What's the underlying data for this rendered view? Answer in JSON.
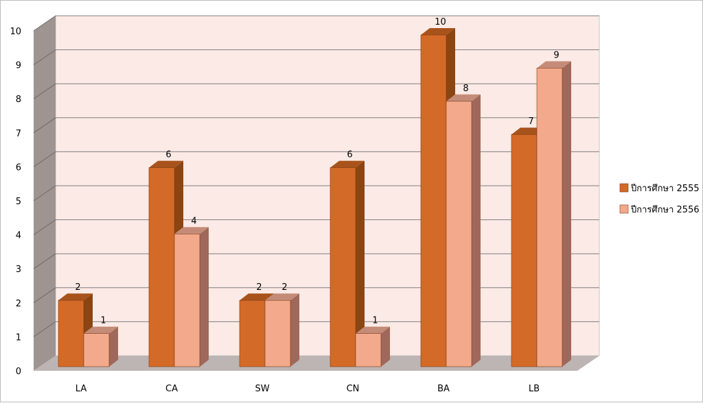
{
  "chart_data": {
    "type": "bar",
    "categories": [
      "LA",
      "CA",
      "SW",
      "CN",
      "BA",
      "LB"
    ],
    "series": [
      {
        "name": "ปีการศึกษา 2555",
        "values": [
          2,
          6,
          2,
          6,
          10,
          7
        ],
        "color": "#D46A28",
        "side": "#8B4513",
        "top": "#A8531C"
      },
      {
        "name": "ปีการศึกษา 2556",
        "values": [
          1,
          4,
          2,
          1,
          8,
          9
        ],
        "color": "#F2A98C",
        "side": "#A0685A",
        "top": "#C48C78"
      }
    ],
    "yticks": [
      "0",
      "1",
      "2",
      "3",
      "4",
      "5",
      "6",
      "7",
      "8",
      "9",
      "10"
    ],
    "ylim": [
      0,
      10
    ],
    "grid": true,
    "legend": "right",
    "wall_color": "#FBEAE5",
    "floor_color": "#BDB5B3",
    "side_wall_color": "#9E9593",
    "grid_color": "#7F7F7F"
  }
}
